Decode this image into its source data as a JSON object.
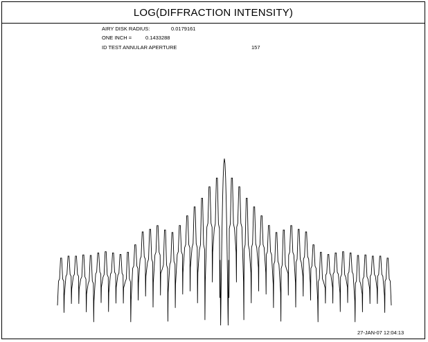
{
  "window": {
    "title": "LOG(DIFFRACTION INTENSITY)"
  },
  "info": {
    "airy_label": "AIRY DISK RADIUS:",
    "airy_value": "0.0179161",
    "inch_label": "ONE INCH =",
    "inch_value": "0.1433288",
    "id_label": "ID TEST ANNULAR APERTURE",
    "id_value": "157"
  },
  "footer": {
    "timestamp": "27-JAN-07  12:04:13"
  },
  "chart_data": {
    "type": "line",
    "title": "LOG(DIFFRACTION INTENSITY)",
    "xlabel": "",
    "ylabel": "",
    "grid": false,
    "legend": "none",
    "line_color": "#000000",
    "x_range": [
      -1,
      1
    ],
    "y_range": [
      0,
      1
    ],
    "description_free_profile": {
      "central_peak": 1.0,
      "ring_peak_levels": [
        0.92,
        0.86,
        0.8,
        0.74,
        0.68,
        0.62,
        0.58,
        0.6,
        0.62,
        0.6,
        0.58,
        0.5,
        0.46,
        0.44,
        0.45,
        0.46,
        0.45,
        0.44,
        0.44,
        0.43,
        0.43,
        0.42
      ]
    }
  }
}
